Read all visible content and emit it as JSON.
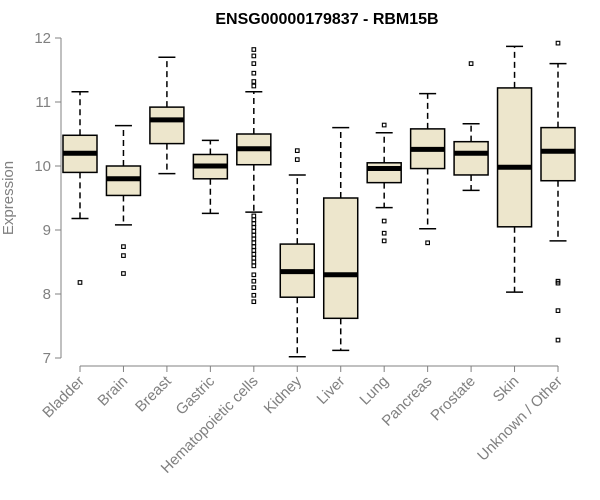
{
  "chart_data": {
    "type": "box",
    "title": "ENSG00000179837 - RBM15B",
    "ylabel": "Expression",
    "xlabel": "",
    "ylim": [
      7,
      12
    ],
    "yticks": [
      7,
      8,
      9,
      10,
      11,
      12
    ],
    "grid": false,
    "legend": "none",
    "box_fill": "#ede6cc",
    "axis_color": "#808080",
    "categories": [
      "Bladder",
      "Brain",
      "Breast",
      "Gastric",
      "Hematopoietic cells",
      "Kidney",
      "Liver",
      "Lung",
      "Pancreas",
      "Prostate",
      "Skin",
      "Unknown / Other"
    ],
    "boxes": [
      {
        "whisker_low": 9.18,
        "q1": 9.9,
        "median": 10.2,
        "q3": 10.48,
        "whisker_high": 11.16,
        "outliers": [
          8.18
        ]
      },
      {
        "whisker_low": 9.08,
        "q1": 9.54,
        "median": 9.8,
        "q3": 10.0,
        "whisker_high": 10.63,
        "outliers": [
          8.74,
          8.6,
          8.32
        ]
      },
      {
        "whisker_low": 9.88,
        "q1": 10.35,
        "median": 10.72,
        "q3": 10.92,
        "whisker_high": 11.7,
        "outliers": []
      },
      {
        "whisker_low": 9.26,
        "q1": 9.8,
        "median": 10.0,
        "q3": 10.18,
        "whisker_high": 10.4,
        "outliers": []
      },
      {
        "whisker_low": 9.28,
        "q1": 10.02,
        "median": 10.27,
        "q3": 10.5,
        "whisker_high": 11.16,
        "outliers": [
          11.82,
          11.72,
          11.6,
          11.45,
          11.32,
          11.25,
          9.22,
          9.16,
          9.1,
          9.04,
          8.98,
          8.92,
          8.86,
          8.8,
          8.74,
          8.68,
          8.62,
          8.56,
          8.5,
          8.44,
          8.3,
          8.2,
          8.1,
          7.98,
          7.88
        ]
      },
      {
        "whisker_low": 7.02,
        "q1": 7.95,
        "median": 8.35,
        "q3": 8.78,
        "whisker_high": 9.86,
        "outliers": [
          10.24,
          10.1
        ]
      },
      {
        "whisker_low": 7.12,
        "q1": 7.62,
        "median": 8.3,
        "q3": 9.5,
        "whisker_high": 10.6,
        "outliers": []
      },
      {
        "whisker_low": 9.35,
        "q1": 9.74,
        "median": 9.96,
        "q3": 10.05,
        "whisker_high": 10.52,
        "outliers": [
          10.64,
          9.14,
          8.95,
          8.83
        ]
      },
      {
        "whisker_low": 9.02,
        "q1": 9.96,
        "median": 10.26,
        "q3": 10.58,
        "whisker_high": 11.13,
        "outliers": [
          8.8
        ]
      },
      {
        "whisker_low": 9.62,
        "q1": 9.86,
        "median": 10.2,
        "q3": 10.38,
        "whisker_high": 10.66,
        "outliers": [
          11.6
        ]
      },
      {
        "whisker_low": 8.03,
        "q1": 9.05,
        "median": 9.98,
        "q3": 11.22,
        "whisker_high": 11.87,
        "outliers": []
      },
      {
        "whisker_low": 8.83,
        "q1": 9.77,
        "median": 10.23,
        "q3": 10.6,
        "whisker_high": 11.6,
        "outliers": [
          11.92,
          8.2,
          8.17,
          7.74,
          7.28
        ]
      }
    ]
  }
}
